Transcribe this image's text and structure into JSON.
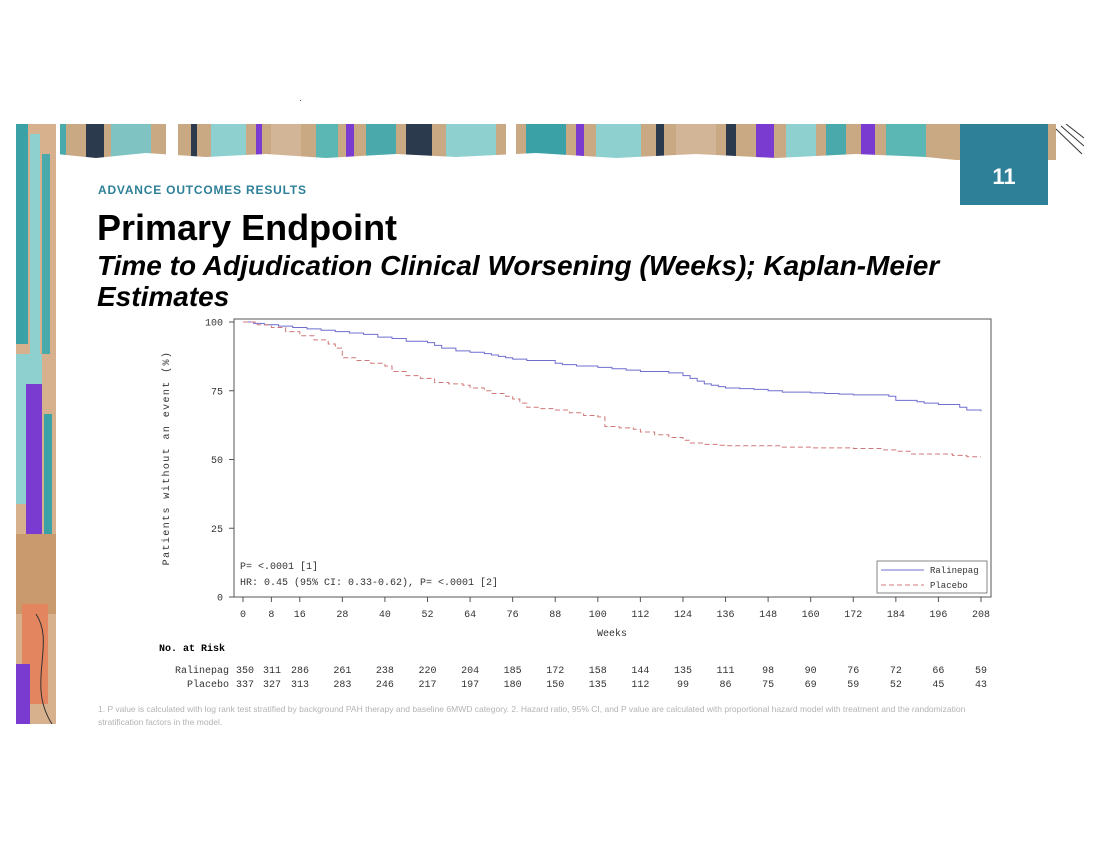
{
  "slide": {
    "page_number": "11",
    "section_label": "ADVANCE OUTCOMES RESULTS",
    "title": "Primary Endpoint",
    "subtitle": "Time to Adjudication Clinical Worsening (Weeks); Kaplan-Meier Estimates",
    "footnote": "1. P value is calculated with log rank test stratified by background PAH therapy and baseline 6MWD category. 2. Hazard ratio, 95% CI, and P value are calculated with proportional hazard model with treatment and the randomization stratification factors in the model."
  },
  "colors": {
    "accent": "#2e7f98",
    "ralinepag": "#6f6fd0",
    "placebo": "#d07878"
  },
  "chart_data": {
    "type": "line",
    "title": "",
    "xlabel": "Weeks",
    "ylabel": "Patients without an event (%)",
    "xlim": [
      0,
      208
    ],
    "ylim": [
      0,
      100
    ],
    "x_ticks": [
      0,
      8,
      16,
      28,
      40,
      52,
      64,
      76,
      88,
      100,
      112,
      124,
      136,
      148,
      160,
      172,
      184,
      196,
      208
    ],
    "y_ticks": [
      0,
      25,
      50,
      75,
      100
    ],
    "grid": false,
    "legend_position": "bottom-right",
    "series": [
      {
        "name": "Ralinepag",
        "style": "solid",
        "points": [
          [
            0,
            100
          ],
          [
            3,
            99.5
          ],
          [
            6,
            99
          ],
          [
            10,
            98.5
          ],
          [
            14,
            98
          ],
          [
            18,
            97.5
          ],
          [
            22,
            97
          ],
          [
            26,
            96.5
          ],
          [
            30,
            96
          ],
          [
            34,
            95.5
          ],
          [
            38,
            94.5
          ],
          [
            42,
            94
          ],
          [
            46,
            93
          ],
          [
            52,
            92.5
          ],
          [
            54,
            91.5
          ],
          [
            56,
            90.5
          ],
          [
            60,
            89.5
          ],
          [
            64,
            89
          ],
          [
            66,
            89
          ],
          [
            68,
            88.5
          ],
          [
            70,
            88
          ],
          [
            72,
            87.5
          ],
          [
            74,
            87
          ],
          [
            76,
            86.5
          ],
          [
            80,
            86
          ],
          [
            88,
            85
          ],
          [
            90,
            84.5
          ],
          [
            94,
            84
          ],
          [
            100,
            83.5
          ],
          [
            104,
            83
          ],
          [
            108,
            82.5
          ],
          [
            112,
            82
          ],
          [
            118,
            82
          ],
          [
            120,
            81.5
          ],
          [
            124,
            80.5
          ],
          [
            126,
            79.5
          ],
          [
            128,
            78.5
          ],
          [
            130,
            77.5
          ],
          [
            132,
            77
          ],
          [
            134,
            76.5
          ],
          [
            136,
            76
          ],
          [
            140,
            75.8
          ],
          [
            144,
            75.5
          ],
          [
            148,
            75
          ],
          [
            152,
            74.5
          ],
          [
            156,
            74.5
          ],
          [
            160,
            74.2
          ],
          [
            164,
            74
          ],
          [
            168,
            73.8
          ],
          [
            172,
            73.5
          ],
          [
            178,
            73.5
          ],
          [
            182,
            73
          ],
          [
            184,
            71.5
          ],
          [
            188,
            71.5
          ],
          [
            190,
            71
          ],
          [
            192,
            70.5
          ],
          [
            196,
            70
          ],
          [
            200,
            70
          ],
          [
            202,
            69
          ],
          [
            204,
            68
          ],
          [
            208,
            67.5
          ]
        ]
      },
      {
        "name": "Placebo",
        "style": "dashed",
        "points": [
          [
            0,
            100
          ],
          [
            4,
            99
          ],
          [
            8,
            98
          ],
          [
            12,
            96.5
          ],
          [
            16,
            95
          ],
          [
            20,
            93.5
          ],
          [
            24,
            92
          ],
          [
            26,
            90.5
          ],
          [
            28,
            87
          ],
          [
            32,
            86
          ],
          [
            36,
            85
          ],
          [
            40,
            84
          ],
          [
            42,
            82
          ],
          [
            46,
            80.5
          ],
          [
            50,
            79.5
          ],
          [
            54,
            78
          ],
          [
            58,
            77.5
          ],
          [
            62,
            77
          ],
          [
            64,
            76
          ],
          [
            68,
            75
          ],
          [
            70,
            74
          ],
          [
            74,
            73
          ],
          [
            76,
            72
          ],
          [
            78,
            70.5
          ],
          [
            80,
            69
          ],
          [
            84,
            68.5
          ],
          [
            88,
            68
          ],
          [
            92,
            67
          ],
          [
            96,
            66
          ],
          [
            100,
            65.5
          ],
          [
            102,
            62
          ],
          [
            106,
            61.5
          ],
          [
            110,
            61
          ],
          [
            112,
            60
          ],
          [
            116,
            59
          ],
          [
            120,
            58
          ],
          [
            124,
            57
          ],
          [
            126,
            56
          ],
          [
            130,
            55.5
          ],
          [
            134,
            55.2
          ],
          [
            136,
            55
          ],
          [
            140,
            55
          ],
          [
            148,
            55
          ],
          [
            152,
            54.5
          ],
          [
            156,
            54.5
          ],
          [
            160,
            54.2
          ],
          [
            172,
            54
          ],
          [
            176,
            54
          ],
          [
            180,
            53.5
          ],
          [
            184,
            53
          ],
          [
            188,
            52
          ],
          [
            196,
            52
          ],
          [
            200,
            51.5
          ],
          [
            204,
            51
          ],
          [
            208,
            51
          ]
        ]
      }
    ],
    "annotations": {
      "p_value": "P= <.0001 [1]",
      "hr": "HR: 0.45 (95% CI: 0.33-0.62), P= <.0001 [2]"
    },
    "risk_table": {
      "title": "No. at Risk",
      "rows": [
        {
          "name": "Ralinepag",
          "values": [
            "350",
            "311",
            "286",
            "261",
            "238",
            "220",
            "204",
            "185",
            "172",
            "158",
            "144",
            "135",
            "111",
            "98",
            "90",
            "76",
            "72",
            "66",
            "59"
          ]
        },
        {
          "name": "Placebo",
          "values": [
            "337",
            "327",
            "313",
            "283",
            "246",
            "217",
            "197",
            "180",
            "150",
            "135",
            "112",
            "99",
            "86",
            "75",
            "69",
            "59",
            "52",
            "45",
            "43"
          ]
        }
      ]
    }
  }
}
